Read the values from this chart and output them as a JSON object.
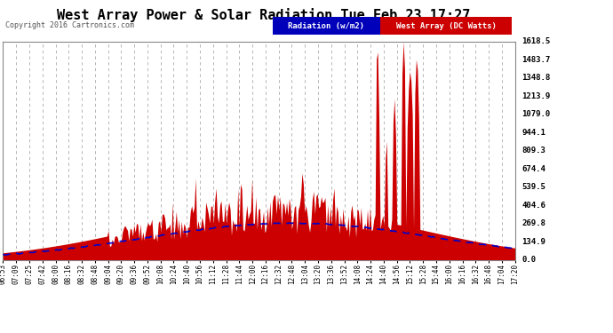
{
  "title": "West Array Power & Solar Radiation Tue Feb 23 17:27",
  "copyright": "Copyright 2016 Cartronics.com",
  "bg_color": "#ffffff",
  "plot_bg_color": "#ffffff",
  "legend1_label": "Radiation (w/m2)",
  "legend2_label": "West Array (DC Watts)",
  "legend1_bg": "#0000bb",
  "legend2_bg": "#cc0000",
  "yticks": [
    0.0,
    134.9,
    269.8,
    404.6,
    539.5,
    674.4,
    809.3,
    944.1,
    1079.0,
    1213.9,
    1348.8,
    1483.7,
    1618.5
  ],
  "ymax": 1618.5,
  "xtick_labels": [
    "06:53",
    "07:09",
    "07:25",
    "07:42",
    "08:00",
    "08:16",
    "08:32",
    "08:48",
    "09:04",
    "09:20",
    "09:36",
    "09:52",
    "10:08",
    "10:24",
    "10:40",
    "10:56",
    "11:12",
    "11:28",
    "11:44",
    "12:00",
    "12:16",
    "12:32",
    "12:48",
    "13:04",
    "13:20",
    "13:36",
    "13:52",
    "14:08",
    "14:24",
    "14:40",
    "14:56",
    "15:12",
    "15:28",
    "15:44",
    "16:00",
    "16:16",
    "16:32",
    "16:48",
    "17:04",
    "17:20"
  ],
  "title_color": "#000000",
  "axis_color": "#888888",
  "grid_color": "#aaaaaa",
  "tick_color": "#000000",
  "ytick_color": "#000000",
  "red_color": "#cc0000",
  "blue_color": "#0000cc"
}
